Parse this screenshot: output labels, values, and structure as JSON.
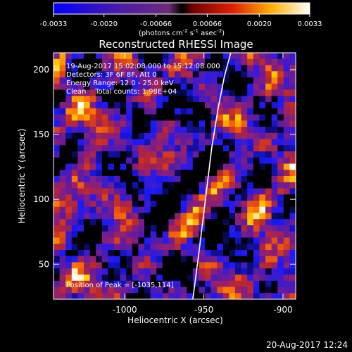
{
  "chart_data": {
    "type": "heatmap",
    "title": "Reconstructed RHESSI Image",
    "colorbar": {
      "ticks": [
        "-0.0033",
        "-0.0020",
        "-0.00066",
        "0.00066",
        "0.0020",
        "0.0033"
      ],
      "tick_values": [
        -0.0033,
        -0.002,
        -0.00066,
        0.00066,
        0.002,
        0.0033
      ],
      "range": [
        -0.0033,
        0.0033
      ],
      "unit_prefix": "(photons cm",
      "unit_exp1": "-2",
      "unit_mid": " s",
      "unit_exp2": "-1",
      "unit_mid2": " asec",
      "unit_exp3": "-2",
      "unit_suffix": ")"
    },
    "info": [
      "19-Aug-2017 15:02:08.000 to 15:12:08.000",
      "Detectors: 3F 6F 8F, Att 0",
      "Energy Range: 12.0 - 25.0 keV",
      "Clean    Total counts: 1.98E+04"
    ],
    "peak_label": "Position of Peak = [-1035,114]",
    "xlabel": "Heliocentric X (arcsec)",
    "ylabel": "Heliocentric Y (arcsec)",
    "xlim": [
      -1045,
      -892
    ],
    "ylim": [
      23,
      213
    ],
    "xticks": [
      -1000,
      -950,
      -900
    ],
    "xtick_labels": [
      "-1000",
      "-950",
      "-900"
    ],
    "yticks": [
      50,
      100,
      150,
      200
    ],
    "ytick_labels": [
      "50",
      "100",
      "150",
      "200"
    ],
    "colormap": [
      "#000000",
      "#1a1aff",
      "#5a1aa8",
      "#8a1f7a",
      "#c02828",
      "#ff6a00",
      "#ffd400",
      "#ffffff"
    ],
    "limb_curve": {
      "x": [
        -957,
        -953,
        -949,
        -945,
        -941,
        -937,
        -933
      ],
      "y": [
        23,
        60,
        100,
        140,
        170,
        195,
        213
      ]
    },
    "grid": false,
    "footer_timestamp": "20-Aug-2017 12:24"
  }
}
